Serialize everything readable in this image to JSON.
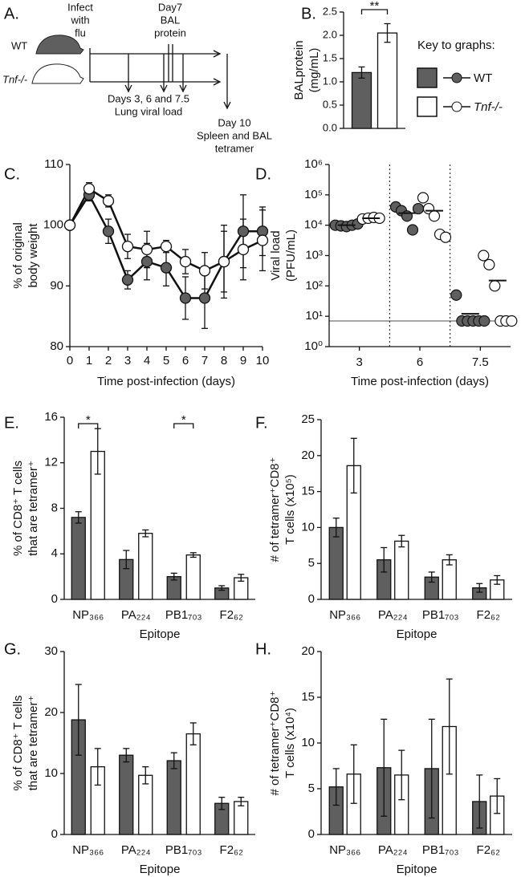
{
  "diagram": {
    "panel": "A.",
    "wt": "WT",
    "tnf": "Tnf-/-",
    "infect": [
      "Infect",
      "with",
      "flu"
    ],
    "bal": [
      "Day7",
      "BAL",
      "protein"
    ],
    "viral": [
      "Days 3, 6 and 7.5",
      "Lung viral load"
    ],
    "tetramer": [
      "Day 10",
      "Spleen and BAL",
      "tetramer"
    ]
  },
  "key": {
    "title": "Key to graphs:",
    "entries": [
      {
        "label": "WT",
        "color": "#5f5f5f"
      },
      {
        "label": "Tnf-/-",
        "color": "#ffffff"
      }
    ]
  },
  "chart_data": [
    {
      "type": "bar",
      "panel": "B.",
      "ylabel": [
        "BALprotein",
        "(mg/mL)"
      ],
      "categories": [
        null
      ],
      "series": [
        {
          "color": "#5f5f5f",
          "values": [
            1.2
          ],
          "errors": [
            0.12
          ]
        },
        {
          "color": "#ffffff",
          "values": [
            2.05
          ],
          "errors": [
            0.2
          ]
        }
      ],
      "significance": [
        "**"
      ],
      "ylim": [
        0,
        2.5
      ],
      "yticks": [
        {
          "value": 0,
          "label": "0.0"
        },
        0.5,
        {
          "value": 1,
          "label": "1.0"
        },
        1.5,
        {
          "value": 2,
          "label": "2.0"
        },
        2.5
      ]
    },
    {
      "type": "line",
      "panel": "C.",
      "ylabel": [
        "% of original",
        "body weight"
      ],
      "xlabel": "Time post-infection (days)",
      "x": [
        0,
        1,
        2,
        3,
        4,
        5,
        6,
        7,
        8,
        9,
        10
      ],
      "series": [
        {
          "color": "#5f5f5f",
          "values": [
            100,
            105,
            99,
            91,
            94,
            93,
            88,
            88,
            94,
            99,
            99
          ],
          "errors": [
            0,
            1,
            2,
            1.5,
            3,
            3,
            3.5,
            5,
            6,
            6,
            4
          ]
        },
        {
          "color": "#ffffff",
          "values": [
            100,
            106,
            104,
            96.5,
            96,
            96.5,
            94,
            92.5,
            94,
            96,
            97.5
          ],
          "errors": [
            0,
            1,
            1,
            2,
            3,
            1,
            2,
            3,
            5,
            5,
            5
          ]
        }
      ],
      "xlim": [
        0,
        10
      ],
      "xticks": [
        0,
        1,
        2,
        3,
        4,
        5,
        6,
        7,
        8,
        9,
        10
      ],
      "ylim": [
        80,
        110
      ],
      "yticks": [
        80,
        90,
        100,
        110
      ]
    },
    {
      "type": "scatter",
      "panel": "D.",
      "ylabel": [
        "Viral load",
        "(PFU/mL)"
      ],
      "xlabel": "Time post-infection (days)",
      "categories": [
        "3",
        "6",
        "7.5"
      ],
      "log_scale": true,
      "series": [
        {
          "color": "#5f5f5f",
          "values": [
            [
              10000,
              9500,
              9000,
              10000,
              11000
            ],
            [
              40000,
              30000,
              20000,
              7000,
              35000
            ],
            [
              50,
              7,
              7,
              7,
              7,
              7
            ]
          ],
          "means": [
            10000,
            25000,
            12
          ]
        },
        {
          "color": "#ffffff",
          "values": [
            [
              16000,
              17000,
              18000,
              17000
            ],
            [
              80000,
              35000,
              20000,
              5000,
              4000
            ],
            [
              1000,
              500,
              100,
              7,
              7,
              7
            ]
          ],
          "means": [
            17000,
            30000,
            150
          ]
        }
      ],
      "detection_limit": 7,
      "ylim": [
        1,
        1000000
      ],
      "yticks": [
        {
          "value": 1,
          "label": "10⁰"
        },
        {
          "value": 10,
          "label": "10¹"
        },
        {
          "value": 100,
          "label": "10²"
        },
        {
          "value": 1000,
          "label": "10³"
        },
        {
          "value": 10000,
          "label": "10⁴"
        },
        {
          "value": 100000,
          "label": "10⁵"
        },
        {
          "value": 1000000,
          "label": "10⁶"
        }
      ]
    },
    {
      "type": "bar",
      "panel": "E.",
      "ylabel": [
        "% of CD8⁺ T cells",
        "that are tetramer⁺"
      ],
      "xlabel": "Epitope",
      "categories": [
        "NP₃₆₆",
        "PA₂₂₄",
        "PB1₇₀₃",
        "F2₆₂"
      ],
      "series": [
        {
          "color": "#5f5f5f",
          "values": [
            7.2,
            3.5,
            2.0,
            1.0
          ],
          "errors": [
            0.5,
            0.8,
            0.3,
            0.2
          ]
        },
        {
          "color": "#ffffff",
          "values": [
            13,
            5.8,
            3.9,
            1.9
          ],
          "errors": [
            2,
            0.3,
            0.2,
            0.3
          ]
        }
      ],
      "significance": [
        "*",
        null,
        "*",
        null
      ],
      "ylim": [
        0,
        16
      ],
      "yticks": [
        0,
        4,
        8,
        12,
        16
      ]
    },
    {
      "type": "bar",
      "panel": "F.",
      "ylabel": [
        "# of tetramer⁺CD8⁺",
        "T cells (x10⁵)"
      ],
      "xlabel": "Epitope",
      "categories": [
        "NP₃₆₆",
        "PA₂₂₄",
        "PB1₇₀₃",
        "F2₆₂"
      ],
      "series": [
        {
          "color": "#5f5f5f",
          "values": [
            10,
            5.5,
            3.1,
            1.6
          ],
          "errors": [
            1.3,
            1.7,
            0.7,
            0.6
          ]
        },
        {
          "color": "#ffffff",
          "values": [
            18.6,
            8.1,
            5.5,
            2.7
          ],
          "errors": [
            3.8,
            0.8,
            0.7,
            0.6
          ]
        }
      ],
      "ylim": [
        0,
        25
      ],
      "yticks": [
        0,
        5,
        10,
        15,
        20,
        25
      ]
    },
    {
      "type": "bar",
      "panel": "G.",
      "ylabel": [
        "% of CD8⁺ T cells",
        "that are tetramer⁺"
      ],
      "xlabel": "Epitope",
      "categories": [
        "NP₃₆₆",
        "PA₂₂₄",
        "PB1₇₀₃",
        "F2₆₂"
      ],
      "series": [
        {
          "color": "#5f5f5f",
          "values": [
            18.8,
            13,
            12.1,
            5.1
          ],
          "errors": [
            5.8,
            1.1,
            1.3,
            1
          ]
        },
        {
          "color": "#ffffff",
          "values": [
            11.1,
            9.7,
            16.5,
            5.4
          ],
          "errors": [
            3,
            1.4,
            1.8,
            0.7
          ]
        }
      ],
      "ylim": [
        0,
        30
      ],
      "yticks": [
        0,
        10,
        20,
        30
      ]
    },
    {
      "type": "bar",
      "panel": "H.",
      "ylabel": [
        "# of tetramer⁺CD8⁺",
        "T cells (x10⁴)"
      ],
      "xlabel": "Epitope",
      "categories": [
        "NP₃₆₆",
        "PA₂₂₄",
        "PB1₇₀₃",
        "F2₆₂"
      ],
      "series": [
        {
          "color": "#5f5f5f",
          "values": [
            5.2,
            7.3,
            7.2,
            3.6
          ],
          "errors": [
            2,
            5.3,
            5.4,
            2.9
          ]
        },
        {
          "color": "#ffffff",
          "values": [
            6.6,
            6.5,
            11.8,
            4.2
          ],
          "errors": [
            3.2,
            2.7,
            5.2,
            1.9
          ]
        }
      ],
      "ylim": [
        0,
        20
      ],
      "yticks": [
        0,
        5,
        10,
        15,
        20
      ]
    }
  ]
}
